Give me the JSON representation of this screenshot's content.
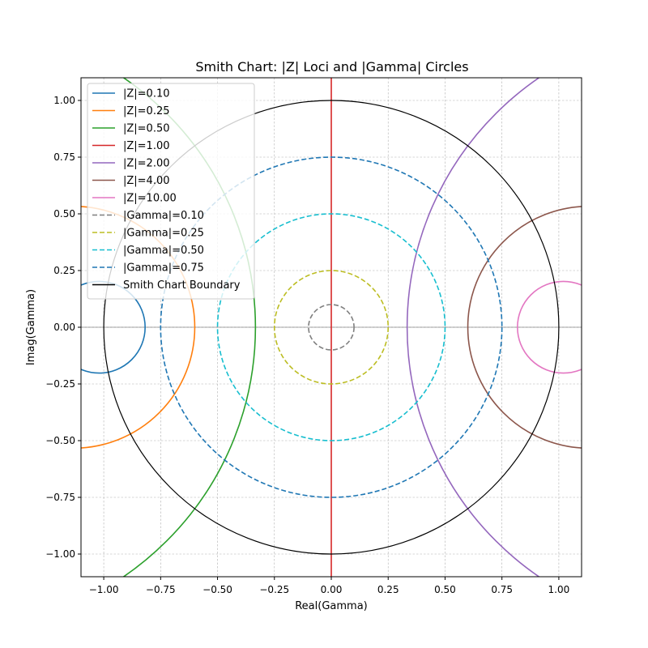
{
  "chart_data": {
    "type": "line",
    "title": "Smith Chart: |Z| Loci and |Gamma| Circles",
    "xlabel": "Real(Gamma)",
    "ylabel": "Imag(Gamma)",
    "xlim": [
      -1.1,
      1.1
    ],
    "ylim": [
      -1.1,
      1.1
    ],
    "xticks": [
      -1.0,
      -0.75,
      -0.5,
      -0.25,
      0.0,
      0.25,
      0.5,
      0.75,
      1.0
    ],
    "xtick_labels": [
      "−1.00",
      "−0.75",
      "−0.50",
      "−0.25",
      "0.00",
      "0.25",
      "0.50",
      "0.75",
      "1.00"
    ],
    "yticks": [
      -1.0,
      -0.75,
      -0.5,
      -0.25,
      0.0,
      0.25,
      0.5,
      0.75,
      1.0
    ],
    "ytick_labels": [
      "−1.00",
      "−0.75",
      "−0.50",
      "−0.25",
      "0.00",
      "0.25",
      "0.50",
      "0.75",
      "1.00"
    ],
    "grid": true,
    "legend_position": "upper-left",
    "series": [
      {
        "name": "|Z|=0.10",
        "kind": "z-locus",
        "z": 0.1,
        "color": "#1f77b4",
        "style": "solid"
      },
      {
        "name": "|Z|=0.25",
        "kind": "z-locus",
        "z": 0.25,
        "color": "#ff7f0e",
        "style": "solid"
      },
      {
        "name": "|Z|=0.50",
        "kind": "z-locus",
        "z": 0.5,
        "color": "#2ca02c",
        "style": "solid"
      },
      {
        "name": "|Z|=1.00",
        "kind": "z-locus",
        "z": 1.0,
        "color": "#d62728",
        "style": "solid"
      },
      {
        "name": "|Z|=2.00",
        "kind": "z-locus",
        "z": 2.0,
        "color": "#9467bd",
        "style": "solid"
      },
      {
        "name": "|Z|=4.00",
        "kind": "z-locus",
        "z": 4.0,
        "color": "#8c564b",
        "style": "solid"
      },
      {
        "name": "|Z|=10.00",
        "kind": "z-locus",
        "z": 10.0,
        "color": "#e377c2",
        "style": "solid"
      },
      {
        "name": "|Gamma|=0.10",
        "kind": "gamma-circle",
        "r": 0.1,
        "color": "#7f7f7f",
        "style": "dashed"
      },
      {
        "name": "|Gamma|=0.25",
        "kind": "gamma-circle",
        "r": 0.25,
        "color": "#bcbd22",
        "style": "dashed"
      },
      {
        "name": "|Gamma|=0.50",
        "kind": "gamma-circle",
        "r": 0.5,
        "color": "#17becf",
        "style": "dashed"
      },
      {
        "name": "|Gamma|=0.75",
        "kind": "gamma-circle",
        "r": 0.75,
        "color": "#1f77b4",
        "style": "dashed"
      },
      {
        "name": "Smith Chart Boundary",
        "kind": "boundary",
        "r": 1.0,
        "color": "#000000",
        "style": "solid"
      }
    ]
  }
}
